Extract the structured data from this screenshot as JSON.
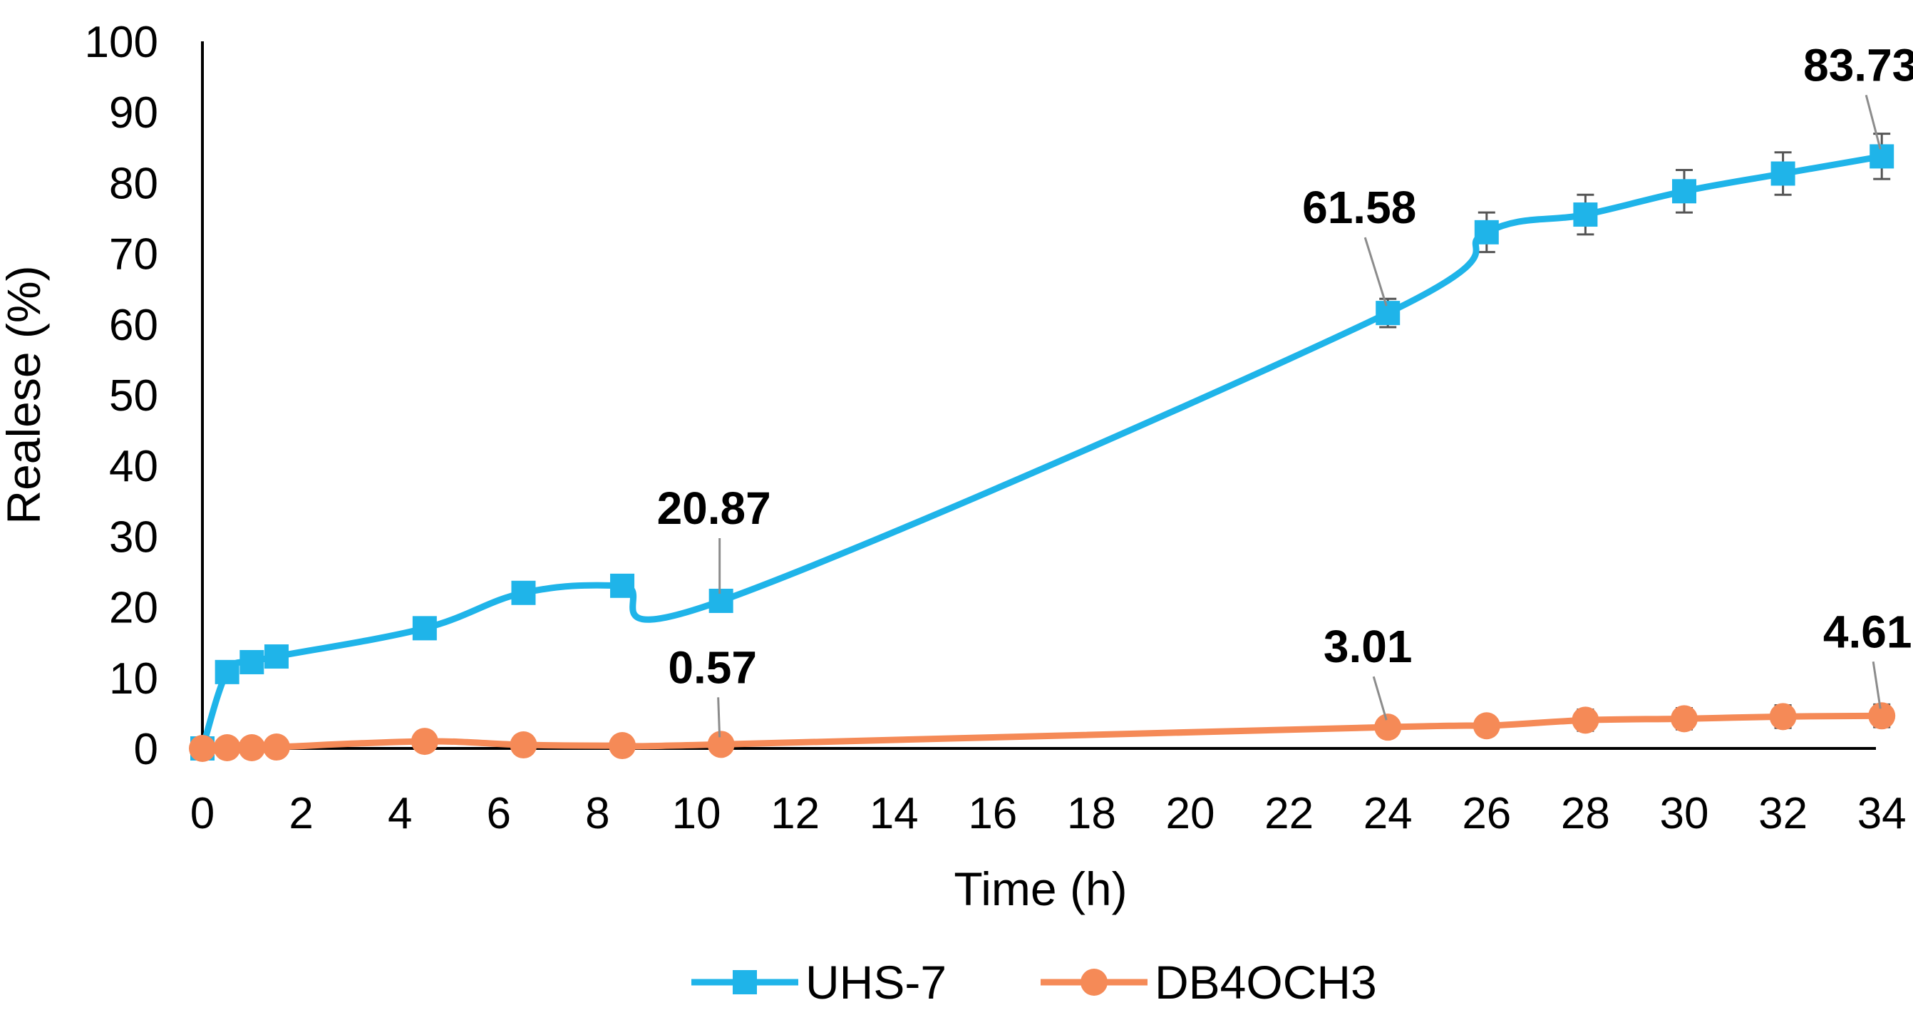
{
  "chart_data": {
    "type": "line",
    "title": "",
    "xlabel": "Time (h)",
    "ylabel": "Realese (%)",
    "ylim": [
      0,
      100
    ],
    "y_ticks": [
      "0",
      "10",
      "20",
      "30",
      "40",
      "50",
      "60",
      "70",
      "80",
      "90",
      "100"
    ],
    "x_tick_labels": [
      "0",
      "2",
      "4",
      "6",
      "8",
      "10",
      "12",
      "14",
      "16",
      "18",
      "20",
      "22",
      "24",
      "26",
      "28",
      "30",
      "32",
      "34"
    ],
    "x_axis_note": "category axis: labels 0-22 are spaced every 2 h, then 24-34 continue at the same spacing",
    "grid": false,
    "legend_position": "bottom",
    "x": [
      0,
      0.5,
      1,
      1.5,
      4.5,
      6.5,
      8.5,
      10.5,
      24,
      26,
      28,
      30,
      32,
      34
    ],
    "series": [
      {
        "name": "UHS-7",
        "color": "#1fb4e9",
        "marker": "square",
        "values": [
          0,
          10.8,
          12.2,
          13.0,
          17.0,
          22.0,
          23.0,
          20.87,
          61.58,
          73.0,
          75.5,
          78.8,
          81.3,
          83.73
        ],
        "error": [
          0,
          0,
          0,
          0,
          0,
          0,
          0,
          0,
          2.0,
          2.8,
          2.8,
          3.0,
          3.0,
          3.2
        ]
      },
      {
        "name": "DB4OCH3",
        "color": "#f58a57",
        "marker": "circle",
        "values": [
          0,
          0.1,
          0.1,
          0.2,
          1.0,
          0.5,
          0.4,
          0.57,
          3.01,
          3.2,
          4.0,
          4.2,
          4.5,
          4.61
        ],
        "error": [
          0,
          0,
          0,
          0,
          0,
          0,
          0,
          0,
          0.5,
          0.6,
          1.5,
          1.5,
          1.6,
          1.6
        ]
      }
    ],
    "annotations": [
      {
        "series": 0,
        "point": 7,
        "text": "20.87"
      },
      {
        "series": 0,
        "point": 8,
        "text": "61.58"
      },
      {
        "series": 0,
        "point": 13,
        "text": "83.73"
      },
      {
        "series": 1,
        "point": 7,
        "text": "0.57"
      },
      {
        "series": 1,
        "point": 8,
        "text": "3.01"
      },
      {
        "series": 1,
        "point": 13,
        "text": "4.61"
      }
    ]
  }
}
